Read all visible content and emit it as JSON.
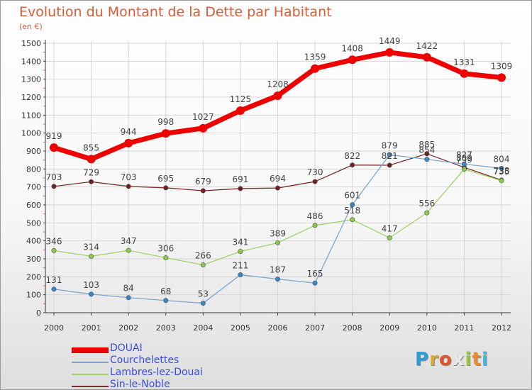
{
  "title": "Evolution du Montant de la Dette par Habitant",
  "subtitle": "(en €)",
  "brand": {
    "letters": [
      {
        "t": "P",
        "c": "#2a9fd6"
      },
      {
        "t": "r",
        "c": "#d9a93a"
      },
      {
        "t": "o",
        "c": "#e0522b"
      },
      {
        "t": "x",
        "c": "#e8e8e8"
      },
      {
        "t": "i",
        "c": "#9bc93b"
      },
      {
        "t": "t",
        "c": "#e88a2e"
      },
      {
        "t": "i",
        "c": "#49b5e0"
      }
    ]
  },
  "chart_data": {
    "type": "line",
    "categories": [
      "2000",
      "2001",
      "2002",
      "2003",
      "2004",
      "2005",
      "2006",
      "2007",
      "2008",
      "2009",
      "2010",
      "2011",
      "2012"
    ],
    "ylim": [
      0,
      1500
    ],
    "yticks": [
      0,
      100,
      200,
      300,
      400,
      500,
      600,
      700,
      800,
      900,
      1000,
      1100,
      1200,
      1300,
      1400,
      1500
    ],
    "grid": true,
    "legend_position": "bottom-left",
    "series": [
      {
        "name": "DOUAI",
        "color": "#ee0000",
        "point_color": "#ee0000",
        "width": 7,
        "values": [
          919,
          855,
          944,
          998,
          1027,
          1125,
          1208,
          1359,
          1408,
          1449,
          1422,
          1331,
          1309
        ],
        "labels": [
          "919",
          "855",
          "944",
          "998",
          "1027",
          "1125",
          "1208",
          "1359",
          "1408",
          "1449",
          "1422",
          "1331",
          "1309"
        ]
      },
      {
        "name": "Courchelettes",
        "color": "#7fa6cc",
        "point_color": "#3a86c6",
        "width": 1.3,
        "values": [
          131,
          103,
          84,
          68,
          53,
          211,
          187,
          165,
          601,
          879,
          854,
          827,
          804
        ],
        "labels": [
          "131",
          "103",
          "84",
          "68",
          "53",
          "211",
          "187",
          "165",
          "601",
          "879",
          "854",
          "827",
          "804"
        ]
      },
      {
        "name": "Lambres-lez-Douai",
        "color": "#9ed36a",
        "point_color": "#8acc4a",
        "width": 1.3,
        "values": [
          346,
          314,
          347,
          306,
          266,
          341,
          389,
          486,
          518,
          417,
          556,
          799,
          735
        ],
        "labels": [
          "346",
          "314",
          "347",
          "306",
          "266",
          "341",
          "389",
          "486",
          "518",
          "417",
          "556",
          "799",
          "735"
        ]
      },
      {
        "name": "Sin-le-Noble",
        "color": "#7a2e2e",
        "point_color": "#6e1f1f",
        "width": 1.3,
        "values": [
          703,
          729,
          703,
          695,
          679,
          691,
          694,
          730,
          822,
          821,
          885,
          809,
          738
        ],
        "labels": [
          "703",
          "729",
          "703",
          "695",
          "679",
          "691",
          "694",
          "730",
          "822",
          "821",
          "885",
          "809",
          "738"
        ]
      }
    ]
  }
}
